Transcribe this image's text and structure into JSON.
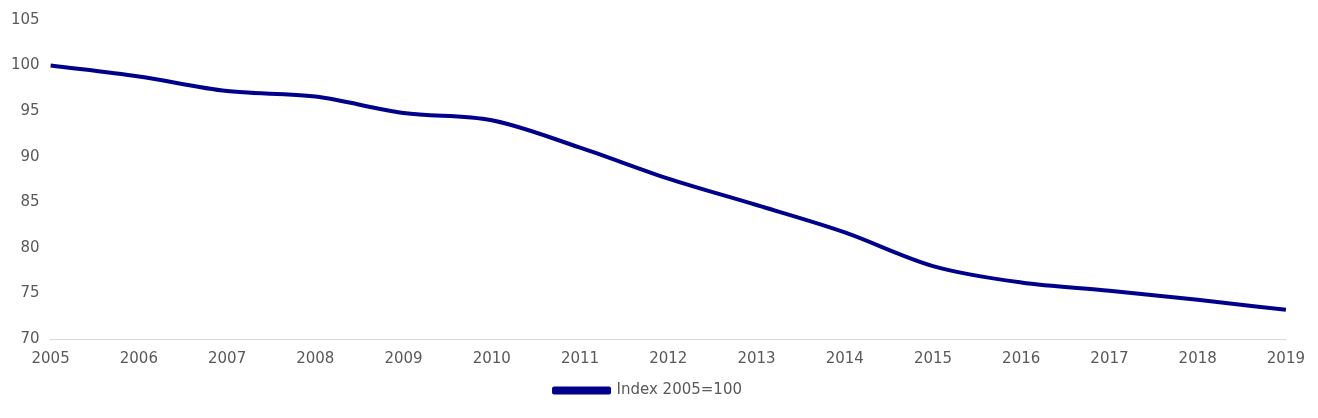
{
  "chart_data": {
    "type": "line",
    "categories": [
      "2005",
      "2006",
      "2007",
      "2008",
      "2009",
      "2010",
      "2011",
      "2012",
      "2013",
      "2014",
      "2015",
      "2016",
      "2017",
      "2018",
      "2019"
    ],
    "series": [
      {
        "name": "Index 2005=100",
        "color": "#00008b",
        "values": [
          100,
          98.8,
          97.2,
          96.6,
          94.8,
          94.0,
          91.0,
          87.6,
          84.7,
          81.7,
          78.0,
          76.2,
          75.3,
          74.3,
          73.2
        ]
      }
    ],
    "ylim": [
      70,
      105
    ],
    "yticks": [
      70,
      75,
      80,
      85,
      90,
      95,
      100,
      105
    ],
    "grid": false,
    "legend": "bottom",
    "marker": "none",
    "line_style": "solid"
  }
}
